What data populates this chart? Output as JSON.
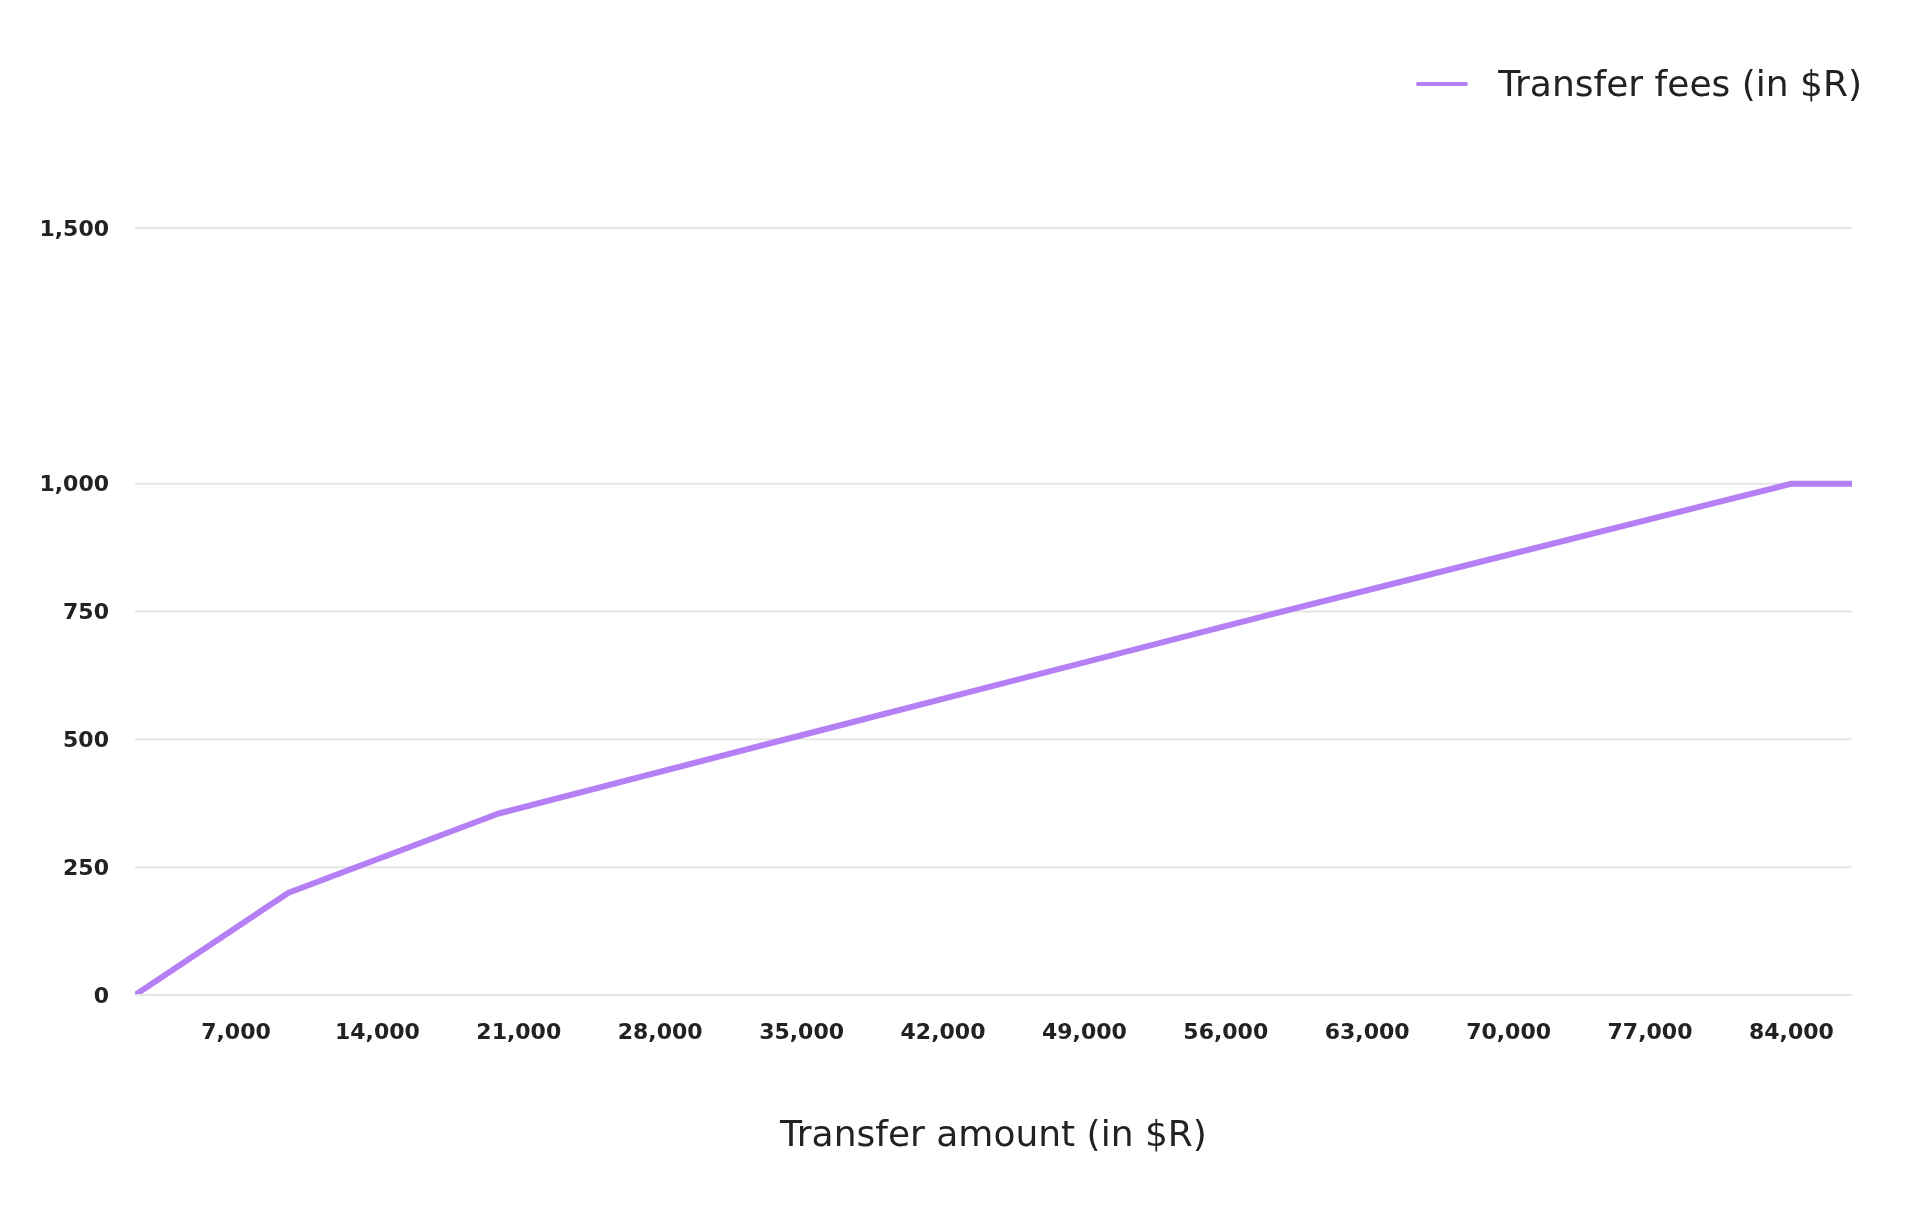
{
  "chart_data": {
    "type": "line",
    "xlabel": "Transfer amount (in $R)",
    "x": [
      2000,
      9600,
      20000,
      35000,
      58000,
      70000,
      84000,
      87000
    ],
    "series": [
      {
        "name": "Transfer fees (in $R)",
        "color": "#b57ff5",
        "values": [
          0,
          200,
          355,
          508,
          742,
          861,
          1000,
          1000
        ]
      }
    ],
    "xlim": [
      2000,
      87000
    ],
    "xticks": [
      {
        "value": 7000,
        "label": "7,000"
      },
      {
        "value": 14000,
        "label": "14,000"
      },
      {
        "value": 21000,
        "label": "21,000"
      },
      {
        "value": 28000,
        "label": "28,000"
      },
      {
        "value": 35000,
        "label": "35,000"
      },
      {
        "value": 42000,
        "label": "42,000"
      },
      {
        "value": 49000,
        "label": "49,000"
      },
      {
        "value": 56000,
        "label": "56,000"
      },
      {
        "value": 63000,
        "label": "63,000"
      },
      {
        "value": 70000,
        "label": "70,000"
      },
      {
        "value": 77000,
        "label": "77,000"
      },
      {
        "value": 84000,
        "label": "84,000"
      }
    ],
    "ylim": [
      0,
      1500
    ],
    "yticks": [
      0,
      250,
      500,
      750,
      {
        "value": 1000,
        "label": "1,000"
      },
      {
        "value": 1500,
        "label": "1,500"
      }
    ],
    "grid": "y",
    "legend": "top right",
    "line_style": "solid"
  }
}
